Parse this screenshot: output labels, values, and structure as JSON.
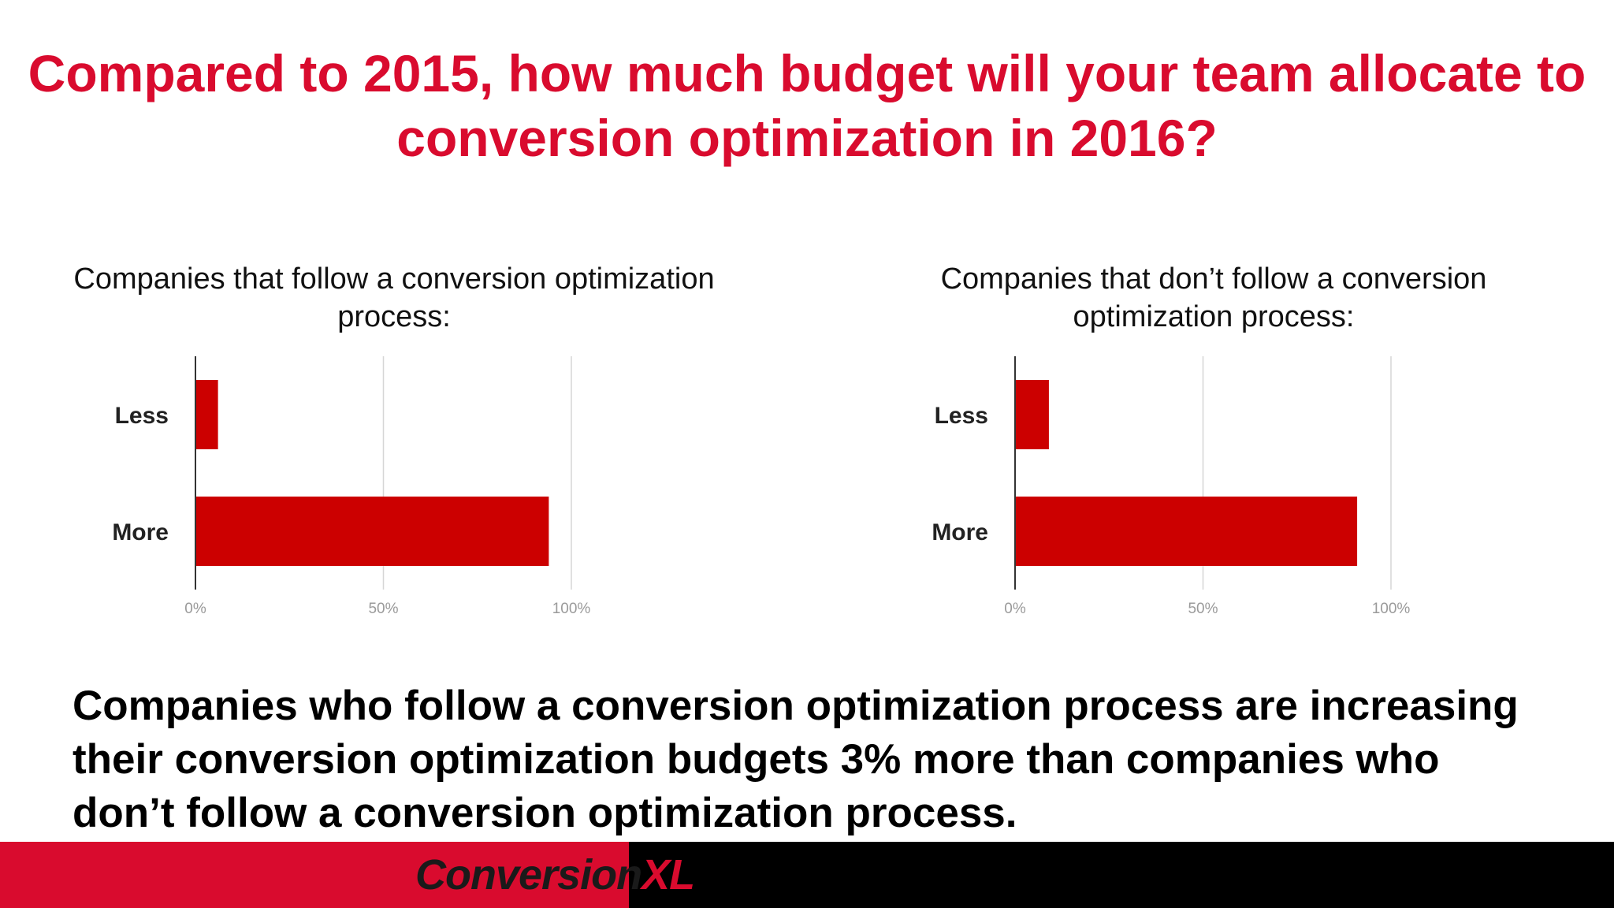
{
  "title": "Compared to 2015, how much budget will your team allocate to conversion optimization in 2016?",
  "summary": "Companies who follow a conversion optimization process are increasing their conversion optimization budgets 3% more than companies who don’t follow a conversion optimization process.",
  "logo": {
    "part1": "Conversion",
    "part2": "XL"
  },
  "colors": {
    "accent": "#d90b2e",
    "bar": "#cc0000",
    "footer_dark": "#000000"
  },
  "chart_data": [
    {
      "type": "bar",
      "orientation": "horizontal",
      "title": "Companies that follow a conversion optimization process:",
      "categories": [
        "Less",
        "More"
      ],
      "values": [
        6,
        94
      ],
      "xlim": [
        0,
        100
      ],
      "xticks": [
        "0%",
        "50%",
        "100%"
      ],
      "grid": true
    },
    {
      "type": "bar",
      "orientation": "horizontal",
      "title": "Companies that don’t follow a conversion optimization process:",
      "categories": [
        "Less",
        "More"
      ],
      "values": [
        9,
        91
      ],
      "xlim": [
        0,
        100
      ],
      "xticks": [
        "0%",
        "50%",
        "100%"
      ],
      "grid": true
    }
  ]
}
